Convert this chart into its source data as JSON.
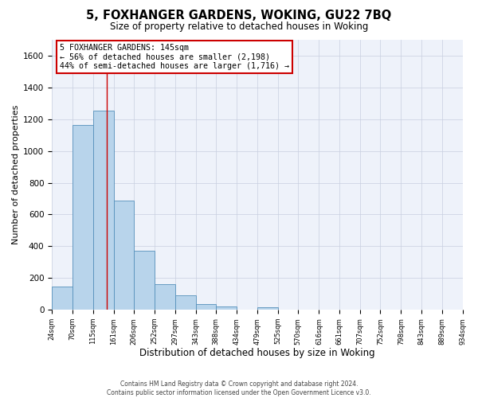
{
  "title": "5, FOXHANGER GARDENS, WOKING, GU22 7BQ",
  "subtitle": "Size of property relative to detached houses in Woking",
  "xlabel": "Distribution of detached houses by size in Woking",
  "ylabel": "Number of detached properties",
  "footer_lines": [
    "Contains HM Land Registry data © Crown copyright and database right 2024.",
    "Contains public sector information licensed under the Open Government Licence v3.0."
  ],
  "bar_edges": [
    24,
    70,
    115,
    161,
    206,
    252,
    297,
    343,
    388,
    434,
    479,
    525,
    570,
    616,
    661,
    707,
    752,
    798,
    843,
    889,
    934
  ],
  "bar_heights": [
    147,
    1165,
    1253,
    687,
    370,
    160,
    91,
    37,
    22,
    0,
    14,
    0,
    0,
    0,
    0,
    0,
    0,
    0,
    0,
    0
  ],
  "bar_color": "#b8d4eb",
  "bar_edge_color": "#5590bb",
  "grid_color": "#c8cfe0",
  "background_color": "#ffffff",
  "plot_background_color": "#eef2fa",
  "property_line_x": 145,
  "property_line_color": "#cc0000",
  "annotation_text_line1": "5 FOXHANGER GARDENS: 145sqm",
  "annotation_text_line2": "← 56% of detached houses are smaller (2,198)",
  "annotation_text_line3": "44% of semi-detached houses are larger (1,716) →",
  "ylim": [
    0,
    1700
  ],
  "yticks": [
    0,
    200,
    400,
    600,
    800,
    1000,
    1200,
    1400,
    1600
  ],
  "tick_labels": [
    "24sqm",
    "70sqm",
    "115sqm",
    "161sqm",
    "206sqm",
    "252sqm",
    "297sqm",
    "343sqm",
    "388sqm",
    "434sqm",
    "479sqm",
    "525sqm",
    "570sqm",
    "616sqm",
    "661sqm",
    "707sqm",
    "752sqm",
    "798sqm",
    "843sqm",
    "889sqm",
    "934sqm"
  ]
}
